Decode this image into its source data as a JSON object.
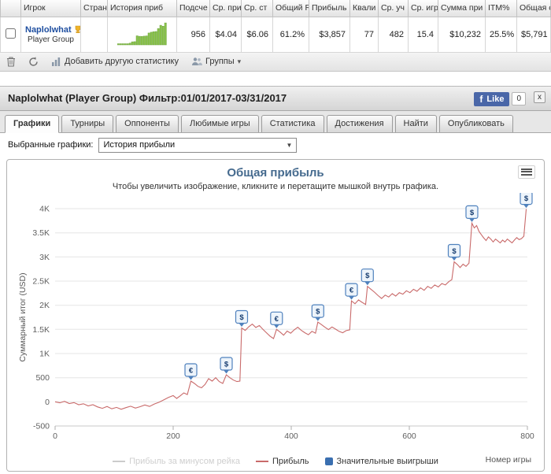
{
  "colors": {
    "fb_blue": "#4a67a8",
    "player_link": "#1f4fa0",
    "chart_title": "#456a8e"
  },
  "table": {
    "columns": [
      "Игрок",
      "Стран",
      "История приб",
      "Подсче",
      "Ср. при",
      "Ср. ст",
      "Общий R",
      "Прибыль",
      "Квали",
      "Ср. уч",
      "Ср. игр",
      "Сумма при",
      "ITM%",
      "Общая с"
    ],
    "row": {
      "name": "Naplolwhat",
      "group": "Player Group",
      "stats": [
        "956",
        "$4.04",
        "$6.06",
        "61.2%",
        "$3,857",
        "77",
        "482",
        "15.4",
        "$10,232",
        "25.5%",
        "$5,791"
      ]
    }
  },
  "toolbar": {
    "add_statistic": "Добавить другую статистику",
    "groups": "Группы"
  },
  "panel": {
    "title": "Naplolwhat (Player Group) Фильтр:01/01/2017-03/31/2017",
    "like_label": "Like",
    "like_count": "0",
    "close": "x"
  },
  "tabs": [
    "Графики",
    "Турниры",
    "Оппоненты",
    "Любимые игры",
    "Статистика",
    "Достижения",
    "Найти",
    "Опубликовать"
  ],
  "chart_select": {
    "label": "Выбранные графики:",
    "value": "История прибыли"
  },
  "chart_data": {
    "type": "line",
    "title": "Общая прибыль",
    "subtitle": "Чтобы увеличить изображение, кликните и перетащите мышкой внутрь графика.",
    "ylabel": "Суммарный итог (USD)",
    "xlabel": "Номер игры",
    "xlim": [
      0,
      800
    ],
    "ylim": [
      -500,
      4000
    ],
    "grid": true,
    "legend_position": "bottom",
    "yticks": [
      {
        "v": -500,
        "label": "-500"
      },
      {
        "v": 0,
        "label": "0"
      },
      {
        "v": 500,
        "label": "500"
      },
      {
        "v": 1000,
        "label": "1K"
      },
      {
        "v": 1500,
        "label": "1.5K"
      },
      {
        "v": 2000,
        "label": "2K"
      },
      {
        "v": 2500,
        "label": "2.5K"
      },
      {
        "v": 3000,
        "label": "3K"
      },
      {
        "v": 3500,
        "label": "3.5K"
      },
      {
        "v": 4000,
        "label": "4K"
      }
    ],
    "xticks": [
      {
        "v": 0,
        "label": "0"
      },
      {
        "v": 200,
        "label": "200"
      },
      {
        "v": 400,
        "label": "400"
      },
      {
        "v": 600,
        "label": "600"
      },
      {
        "v": 800,
        "label": "800"
      }
    ],
    "legend": [
      {
        "label": "Прибыль за минусом рейка",
        "color": "#cccccc",
        "type": "line",
        "disabled": true
      },
      {
        "label": "Прибыль",
        "color": "#c96a6a",
        "type": "line",
        "disabled": false
      },
      {
        "label": "Значительные выигрыши",
        "color": "#3a6fb0",
        "type": "square",
        "disabled": false
      }
    ],
    "marker_style": {
      "border": "#4f81bd",
      "fill": "#edf4fb",
      "text": "#173d70"
    },
    "series": [
      {
        "name": "Прибыль",
        "color": "#c96a6a",
        "data": [
          [
            0,
            0
          ],
          [
            8,
            -20
          ],
          [
            16,
            10
          ],
          [
            24,
            -35
          ],
          [
            32,
            -15
          ],
          [
            40,
            -60
          ],
          [
            48,
            -40
          ],
          [
            56,
            -85
          ],
          [
            64,
            -60
          ],
          [
            72,
            -105
          ],
          [
            80,
            -135
          ],
          [
            88,
            -95
          ],
          [
            96,
            -145
          ],
          [
            104,
            -115
          ],
          [
            112,
            -155
          ],
          [
            120,
            -120
          ],
          [
            128,
            -90
          ],
          [
            136,
            -130
          ],
          [
            144,
            -100
          ],
          [
            152,
            -65
          ],
          [
            160,
            -95
          ],
          [
            168,
            -45
          ],
          [
            176,
            -10
          ],
          [
            184,
            40
          ],
          [
            192,
            90
          ],
          [
            200,
            130
          ],
          [
            206,
            70
          ],
          [
            212,
            125
          ],
          [
            218,
            185
          ],
          [
            224,
            150
          ],
          [
            230,
            430
          ],
          [
            236,
            380
          ],
          [
            242,
            320
          ],
          [
            248,
            290
          ],
          [
            254,
            360
          ],
          [
            260,
            480
          ],
          [
            266,
            430
          ],
          [
            272,
            500
          ],
          [
            278,
            420
          ],
          [
            284,
            380
          ],
          [
            290,
            560
          ],
          [
            296,
            500
          ],
          [
            302,
            450
          ],
          [
            308,
            420
          ],
          [
            313,
            430
          ],
          [
            316,
            1530
          ],
          [
            322,
            1480
          ],
          [
            328,
            1555
          ],
          [
            334,
            1610
          ],
          [
            340,
            1540
          ],
          [
            346,
            1580
          ],
          [
            352,
            1500
          ],
          [
            358,
            1430
          ],
          [
            364,
            1360
          ],
          [
            370,
            1310
          ],
          [
            375,
            1500
          ],
          [
            381,
            1445
          ],
          [
            387,
            1380
          ],
          [
            393,
            1465
          ],
          [
            399,
            1420
          ],
          [
            405,
            1490
          ],
          [
            411,
            1545
          ],
          [
            417,
            1480
          ],
          [
            423,
            1430
          ],
          [
            429,
            1390
          ],
          [
            435,
            1460
          ],
          [
            441,
            1420
          ],
          [
            445,
            1650
          ],
          [
            451,
            1600
          ],
          [
            457,
            1545
          ],
          [
            463,
            1495
          ],
          [
            469,
            1550
          ],
          [
            475,
            1505
          ],
          [
            481,
            1460
          ],
          [
            487,
            1430
          ],
          [
            493,
            1475
          ],
          [
            499,
            1490
          ],
          [
            502,
            2090
          ],
          [
            508,
            2030
          ],
          [
            514,
            2110
          ],
          [
            520,
            2060
          ],
          [
            526,
            2015
          ],
          [
            529,
            2390
          ],
          [
            535,
            2330
          ],
          [
            541,
            2270
          ],
          [
            547,
            2200
          ],
          [
            553,
            2140
          ],
          [
            559,
            2210
          ],
          [
            565,
            2170
          ],
          [
            571,
            2240
          ],
          [
            577,
            2190
          ],
          [
            583,
            2260
          ],
          [
            589,
            2230
          ],
          [
            595,
            2300
          ],
          [
            601,
            2260
          ],
          [
            607,
            2330
          ],
          [
            613,
            2290
          ],
          [
            619,
            2360
          ],
          [
            625,
            2310
          ],
          [
            631,
            2390
          ],
          [
            637,
            2350
          ],
          [
            643,
            2420
          ],
          [
            649,
            2380
          ],
          [
            655,
            2450
          ],
          [
            661,
            2420
          ],
          [
            667,
            2490
          ],
          [
            672,
            2530
          ],
          [
            676,
            2900
          ],
          [
            681,
            2845
          ],
          [
            686,
            2780
          ],
          [
            691,
            2850
          ],
          [
            696,
            2805
          ],
          [
            701,
            2870
          ],
          [
            706,
            3700
          ],
          [
            710,
            3600
          ],
          [
            714,
            3650
          ],
          [
            718,
            3530
          ],
          [
            722,
            3460
          ],
          [
            726,
            3395
          ],
          [
            730,
            3340
          ],
          [
            734,
            3415
          ],
          [
            738,
            3370
          ],
          [
            742,
            3310
          ],
          [
            746,
            3370
          ],
          [
            750,
            3330
          ],
          [
            754,
            3290
          ],
          [
            758,
            3350
          ],
          [
            762,
            3310
          ],
          [
            766,
            3370
          ],
          [
            770,
            3330
          ],
          [
            774,
            3290
          ],
          [
            778,
            3350
          ],
          [
            782,
            3400
          ],
          [
            786,
            3360
          ],
          [
            790,
            3380
          ],
          [
            794,
            3430
          ],
          [
            798,
            3990
          ]
        ]
      }
    ],
    "markers": [
      {
        "x": 230,
        "y": 430,
        "symbol": "€"
      },
      {
        "x": 290,
        "y": 560,
        "symbol": "$"
      },
      {
        "x": 316,
        "y": 1530,
        "symbol": "$"
      },
      {
        "x": 375,
        "y": 1500,
        "symbol": "€"
      },
      {
        "x": 445,
        "y": 1650,
        "symbol": "$"
      },
      {
        "x": 502,
        "y": 2090,
        "symbol": "€"
      },
      {
        "x": 529,
        "y": 2390,
        "symbol": "$"
      },
      {
        "x": 676,
        "y": 2900,
        "symbol": "$"
      },
      {
        "x": 706,
        "y": 3700,
        "symbol": "$"
      },
      {
        "x": 798,
        "y": 3990,
        "symbol": "$"
      }
    ]
  }
}
